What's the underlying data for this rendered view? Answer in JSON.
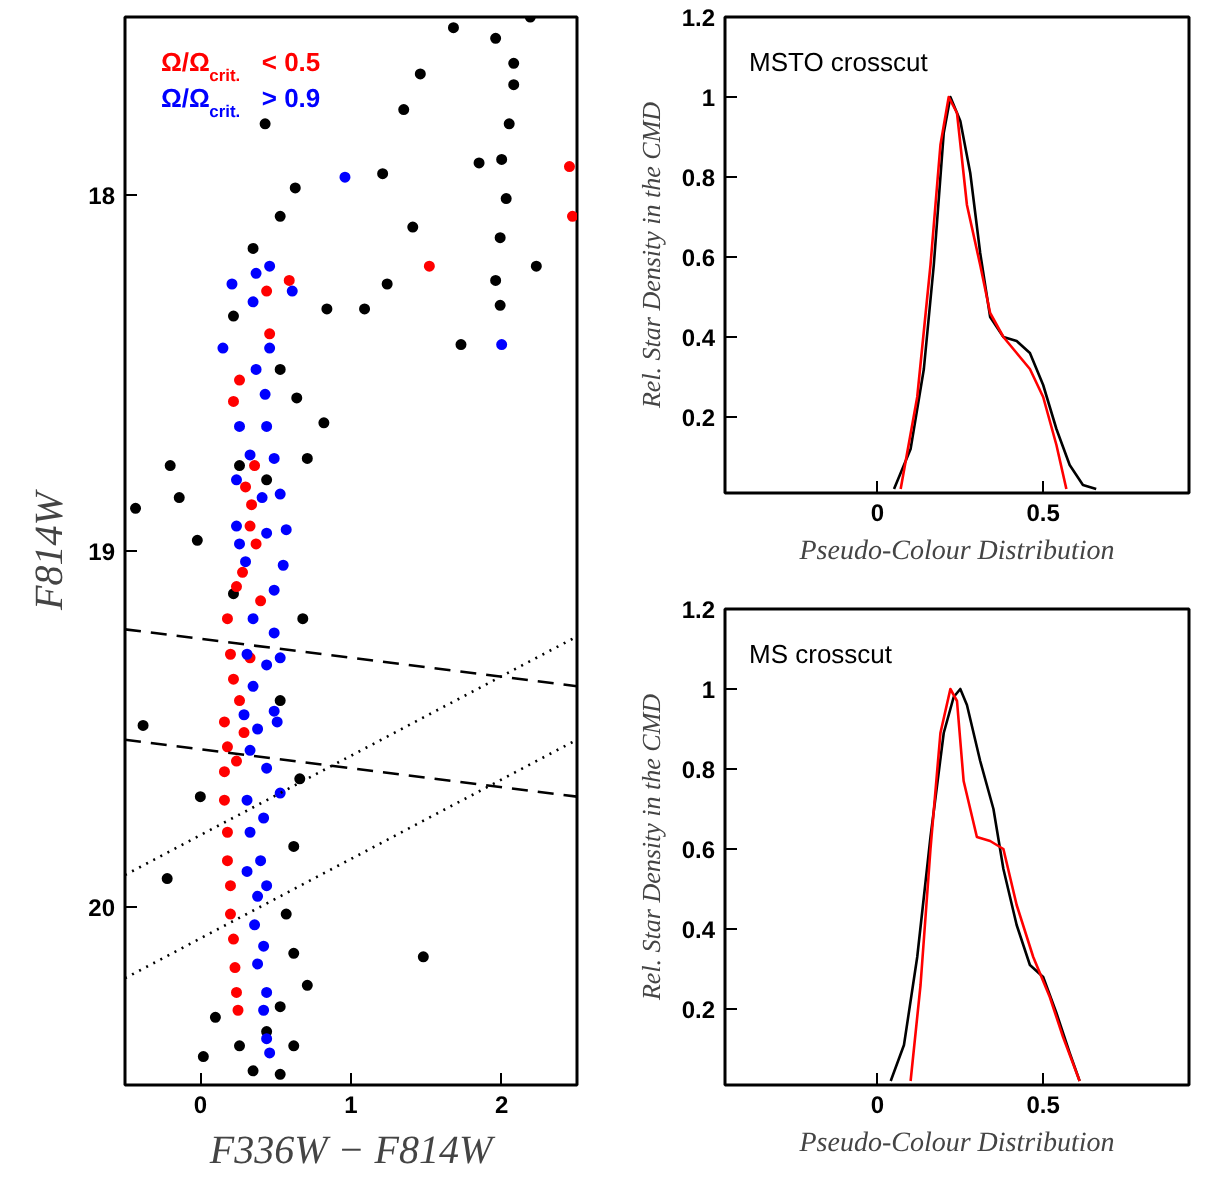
{
  "chart_data": [
    {
      "type": "scatter",
      "xlabel": "F336W − F814W",
      "ylabel": "F814W",
      "xlim": [
        -0.5,
        2.5
      ],
      "ylim": [
        20.5,
        17.5
      ],
      "xticks": [
        0,
        1,
        2
      ],
      "yticks": [
        18,
        19,
        20
      ],
      "series": [
        {
          "marker": "circle",
          "color": "#000000",
          "x": [
            1.68,
            1.96,
            2.19,
            2.08,
            2.05,
            2.08,
            2.0,
            2.03,
            1.99,
            1.96,
            1.99,
            2.23,
            1.85,
            1.35,
            1.46,
            1.21,
            1.41,
            1.24,
            0.84,
            1.09,
            1.73,
            0.43,
            0.63,
            0.53,
            0.35,
            0.82,
            -0.2,
            -0.14,
            -0.43,
            -0.02,
            0.71,
            0.22,
            0.53,
            0.64,
            0.26,
            0.44,
            -0.38,
            0.0,
            -0.22,
            1.48,
            0.1,
            0.02,
            0.35,
            0.53,
            0.62,
            0.71,
            0.57,
            0.62,
            0.66,
            0.68,
            0.44,
            0.26,
            0.53,
            0.62,
            0.22,
            0.53
          ],
          "values": [
            17.53,
            17.56,
            17.5,
            17.63,
            17.8,
            17.69,
            17.9,
            18.01,
            18.12,
            18.24,
            18.31,
            18.2,
            17.91,
            17.76,
            17.66,
            17.94,
            18.09,
            18.25,
            18.32,
            18.32,
            18.42,
            17.8,
            17.98,
            18.06,
            18.15,
            18.64,
            18.76,
            18.85,
            18.88,
            18.97,
            18.74,
            18.34,
            18.49,
            18.57,
            18.76,
            18.8,
            19.49,
            19.69,
            19.92,
            20.14,
            20.31,
            20.42,
            20.46,
            20.47,
            20.39,
            20.22,
            20.02,
            19.83,
            19.64,
            19.19,
            20.35,
            20.39,
            20.28,
            20.13,
            19.12,
            19.42
          ]
        },
        {
          "marker": "circle",
          "name": "Ω/Ω$_{crit.}$ < 0.5",
          "color": "#ff0000",
          "x": [
            2.45,
            2.47,
            1.52,
            0.59,
            0.44,
            0.46,
            0.26,
            0.22,
            0.36,
            0.3,
            0.34,
            0.33,
            0.37,
            0.28,
            0.24,
            0.18,
            0.2,
            0.22,
            0.16,
            0.18,
            0.16,
            0.16,
            0.18,
            0.18,
            0.2,
            0.2,
            0.22,
            0.23,
            0.24,
            0.25,
            0.4,
            0.33,
            0.26,
            0.29,
            0.24
          ],
          "values": [
            17.92,
            18.06,
            18.2,
            18.24,
            18.27,
            18.39,
            18.52,
            18.58,
            18.76,
            18.82,
            18.87,
            18.93,
            18.98,
            19.06,
            19.1,
            19.19,
            19.29,
            19.36,
            19.48,
            19.55,
            19.62,
            19.7,
            19.79,
            19.87,
            19.94,
            20.02,
            20.09,
            20.17,
            20.24,
            20.29,
            19.14,
            19.3,
            19.42,
            19.51,
            19.59
          ]
        },
        {
          "marker": "circle",
          "name": "Ω/Ω$_{crit.}$ > 0.9",
          "color": "#0000ff",
          "x": [
            0.96,
            2.0,
            0.15,
            0.21,
            0.37,
            0.46,
            0.61,
            0.35,
            0.46,
            0.37,
            0.43,
            0.26,
            0.44,
            0.33,
            0.49,
            0.24,
            0.41,
            0.53,
            0.24,
            0.44,
            0.57,
            0.26,
            0.55,
            0.3,
            0.49,
            0.35,
            0.49,
            0.31,
            0.44,
            0.53,
            0.35,
            0.29,
            0.49,
            0.38,
            0.51,
            0.33,
            0.44,
            0.53,
            0.31,
            0.42,
            0.33,
            0.4,
            0.31,
            0.38,
            0.44,
            0.36,
            0.42,
            0.38,
            0.44,
            0.42,
            0.44,
            0.46
          ],
          "values": [
            17.95,
            18.42,
            18.43,
            18.25,
            18.22,
            18.2,
            18.27,
            18.3,
            18.43,
            18.49,
            18.56,
            18.65,
            18.65,
            18.73,
            18.74,
            18.8,
            18.85,
            18.84,
            18.93,
            18.95,
            18.94,
            18.98,
            19.04,
            19.03,
            19.11,
            19.19,
            19.23,
            19.29,
            19.32,
            19.3,
            19.38,
            19.46,
            19.45,
            19.5,
            19.48,
            19.56,
            19.61,
            19.68,
            19.7,
            19.75,
            19.79,
            19.87,
            19.9,
            19.97,
            19.94,
            20.05,
            20.11,
            20.16,
            20.24,
            20.29,
            20.37,
            20.41
          ]
        },
        {
          "type": "line",
          "line_style": "dashed",
          "color": "#000000",
          "x": [
            -0.5,
            2.5
          ],
          "values": [
            19.22,
            19.38
          ]
        },
        {
          "type": "line",
          "line_style": "dashed",
          "color": "#000000",
          "x": [
            -0.5,
            2.5
          ],
          "values": [
            19.53,
            19.69
          ]
        },
        {
          "type": "line",
          "line_style": "dotted",
          "color": "#000000",
          "x": [
            -0.5,
            2.5
          ],
          "values": [
            19.91,
            19.24
          ]
        },
        {
          "type": "line",
          "line_style": "dotted",
          "color": "#000000",
          "x": [
            -0.5,
            2.5
          ],
          "values": [
            20.2,
            19.53
          ]
        }
      ]
    },
    {
      "type": "line",
      "xlabel": "Pseudo-Colour Distribution",
      "ylabel": "Rel. Star Density in the CMD",
      "xlim": [
        -0.46,
        0.94
      ],
      "ylim": [
        0.01,
        1.2
      ],
      "xticks": [
        0,
        0.5
      ],
      "yticks": [
        0.2,
        0.4,
        0.6,
        0.8,
        1,
        1.2
      ],
      "annotations": [
        "MSTO crosscut"
      ],
      "series": [
        {
          "color": "#000000",
          "x": [
            0.05,
            0.1,
            0.14,
            0.17,
            0.2,
            0.22,
            0.25,
            0.28,
            0.31,
            0.34,
            0.38,
            0.42,
            0.46,
            0.5,
            0.54,
            0.58,
            0.62,
            0.66
          ],
          "values": [
            0.02,
            0.12,
            0.32,
            0.58,
            0.91,
            1.0,
            0.94,
            0.81,
            0.61,
            0.45,
            0.4,
            0.39,
            0.36,
            0.28,
            0.17,
            0.08,
            0.03,
            0.02
          ]
        },
        {
          "color": "#ff0000",
          "x": [
            0.07,
            0.12,
            0.16,
            0.19,
            0.215,
            0.24,
            0.27,
            0.31,
            0.34,
            0.38,
            0.42,
            0.46,
            0.5,
            0.54,
            0.57
          ],
          "values": [
            0.02,
            0.25,
            0.58,
            0.88,
            1.0,
            0.96,
            0.73,
            0.58,
            0.46,
            0.4,
            0.36,
            0.32,
            0.25,
            0.13,
            0.02
          ]
        }
      ]
    },
    {
      "type": "line",
      "xlabel": "Pseudo-Colour Distribution",
      "ylabel": "Rel. Star Density in the CMD",
      "xlim": [
        -0.46,
        0.94
      ],
      "ylim": [
        0.01,
        1.2
      ],
      "xticks": [
        0,
        0.5
      ],
      "yticks": [
        0.2,
        0.4,
        0.6,
        0.8,
        1,
        1.2
      ],
      "annotations": [
        "MS crosscut"
      ],
      "series": [
        {
          "color": "#000000",
          "x": [
            0.04,
            0.08,
            0.12,
            0.16,
            0.2,
            0.23,
            0.25,
            0.27,
            0.31,
            0.35,
            0.38,
            0.42,
            0.46,
            0.5,
            0.54,
            0.58,
            0.61
          ],
          "values": [
            0.02,
            0.11,
            0.33,
            0.63,
            0.89,
            0.98,
            1.0,
            0.96,
            0.82,
            0.7,
            0.55,
            0.41,
            0.31,
            0.28,
            0.19,
            0.09,
            0.02
          ]
        },
        {
          "color": "#ff0000",
          "x": [
            0.1,
            0.13,
            0.16,
            0.19,
            0.22,
            0.24,
            0.26,
            0.3,
            0.34,
            0.38,
            0.42,
            0.47,
            0.52,
            0.56,
            0.61
          ],
          "values": [
            0.02,
            0.26,
            0.6,
            0.89,
            1.0,
            0.97,
            0.77,
            0.63,
            0.62,
            0.6,
            0.46,
            0.33,
            0.23,
            0.13,
            0.02
          ]
        }
      ]
    }
  ]
}
